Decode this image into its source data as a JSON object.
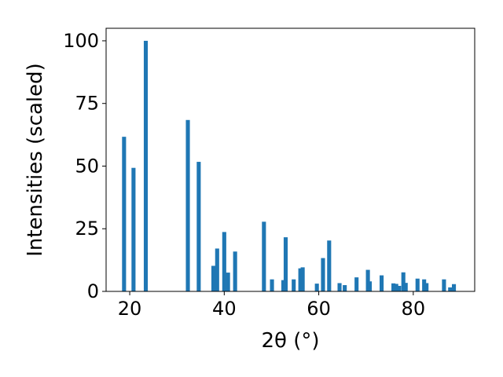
{
  "chart_data": {
    "type": "bar",
    "title": "",
    "xlabel": "2θ (°)",
    "ylabel": "Intensities (scaled)",
    "xlim": [
      15,
      93
    ],
    "ylim": [
      0,
      105
    ],
    "xticks": [
      20,
      40,
      60,
      80
    ],
    "yticks": [
      0,
      25,
      50,
      75,
      100
    ],
    "bar_color": "#1f77b4",
    "grid": false,
    "x": [
      18.8,
      20.8,
      23.4,
      32.3,
      34.6,
      37.7,
      38.5,
      40.0,
      40.8,
      42.3,
      48.4,
      50.1,
      52.5,
      53.0,
      54.7,
      56.1,
      56.6,
      59.6,
      60.9,
      62.2,
      64.4,
      65.5,
      68.0,
      70.4,
      70.8,
      73.3,
      75.8,
      76.4,
      77.0,
      77.9,
      78.4,
      80.9,
      82.3,
      82.8,
      86.5,
      87.8,
      88.6
    ],
    "values": [
      61.7,
      49.3,
      100.0,
      68.4,
      51.7,
      10.2,
      17.1,
      23.7,
      7.5,
      15.9,
      27.8,
      4.8,
      4.5,
      21.6,
      4.8,
      9.2,
      9.6,
      3.1,
      13.3,
      20.3,
      3.3,
      2.5,
      5.6,
      8.6,
      4.0,
      6.4,
      3.2,
      3.0,
      2.2,
      7.6,
      3.4,
      5.1,
      4.8,
      3.3,
      4.8,
      1.6,
      2.9
    ]
  }
}
